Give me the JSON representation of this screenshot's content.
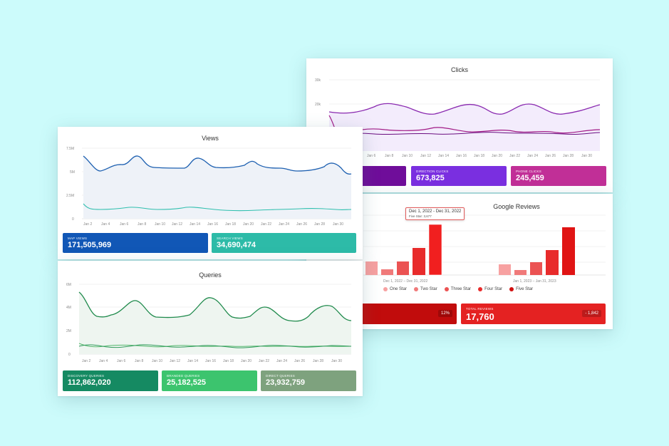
{
  "clicks": {
    "title": "Clicks",
    "y_ticks": [
      "30k",
      "20k"
    ],
    "x_ticks": [
      "Jan 6",
      "Jan 8",
      "Jan 10",
      "Jan 12",
      "Jan 14",
      "Jan 16",
      "Jan 18",
      "Jan 20",
      "Jan 22",
      "Jan 24",
      "Jan 26",
      "Jan 28",
      "Jan 30"
    ],
    "metrics": [
      {
        "label": "",
        "value": "",
        "color": "#6f0d9a"
      },
      {
        "label": "DIRECTION CLICKS",
        "value": "673,825",
        "color": "#7a2fe0"
      },
      {
        "label": "PHONE CLICKS",
        "value": "245,459",
        "color": "#c12f97"
      }
    ],
    "colors": {
      "line1": "#8a2ab0",
      "line2": "#a11a86",
      "line3": "#6a0d80",
      "fill": "#f1e9fb"
    }
  },
  "reviews": {
    "title": "Google Reviews",
    "tooltip_title": "Dec 1, 2022 - Dec 31, 2022",
    "tooltip_value": "Five Star: 3,677",
    "group_labels": [
      "Dec 1, 2022 – Dec 31, 2022",
      "Jan 1, 2023 – Jan 31, 2023"
    ],
    "legend": [
      {
        "label": "One Star",
        "color": "#f7a1a1"
      },
      {
        "label": "Two Star",
        "color": "#f07a7a"
      },
      {
        "label": "Three Star",
        "color": "#eb5353"
      },
      {
        "label": "Four Star",
        "color": "#e82b2b"
      },
      {
        "label": "Five Star",
        "color": "#d10f0f"
      }
    ],
    "metric_left_badge": "12%",
    "total_label": "TOTAL REVIEWS",
    "total_value": "17,760",
    "total_badge": "- 1,842",
    "colors": {
      "left": "#c10c0c",
      "right": "#e42222"
    }
  },
  "views": {
    "title": "Views",
    "y_ticks": [
      "7.5M",
      "5M",
      "2.5M",
      "0"
    ],
    "x_ticks": [
      "Jan 2",
      "Jan 4",
      "Jan 6",
      "Jan 8",
      "Jan 10",
      "Jan 12",
      "Jan 14",
      "Jan 16",
      "Jan 18",
      "Jan 20",
      "Jan 22",
      "Jan 24",
      "Jan 26",
      "Jan 28",
      "Jan 30"
    ],
    "metrics": [
      {
        "label": "MAP VIEWS",
        "value": "171,505,969",
        "color": "#1157b6"
      },
      {
        "label": "SEARCH VIEWS",
        "value": "34,690,474",
        "color": "#2dbba8"
      }
    ],
    "colors": {
      "line1": "#1c5fb0",
      "line2": "#2fbfae",
      "fill": "#eef2f8"
    }
  },
  "queries": {
    "title": "Queries",
    "y_ticks": [
      "6M",
      "4M",
      "2M",
      "0"
    ],
    "x_ticks": [
      "Jan 2",
      "Jan 4",
      "Jan 6",
      "Jan 8",
      "Jan 10",
      "Jan 12",
      "Jan 14",
      "Jan 16",
      "Jan 18",
      "Jan 20",
      "Jan 22",
      "Jan 24",
      "Jan 26",
      "Jan 28",
      "Jan 30"
    ],
    "metrics": [
      {
        "label": "DISCOVERY QUERIES",
        "value": "112,862,020",
        "color": "#158a62"
      },
      {
        "label": "BRANDED QUERIES",
        "value": "25,182,525",
        "color": "#3cc46e"
      },
      {
        "label": "DIRECT QUERIES",
        "value": "23,932,759",
        "color": "#7ea27e"
      }
    ],
    "colors": {
      "line1": "#1f8a4c",
      "line2": "#56b86e",
      "line3": "#2e9a5a",
      "fill": "#eef5f0"
    }
  }
}
